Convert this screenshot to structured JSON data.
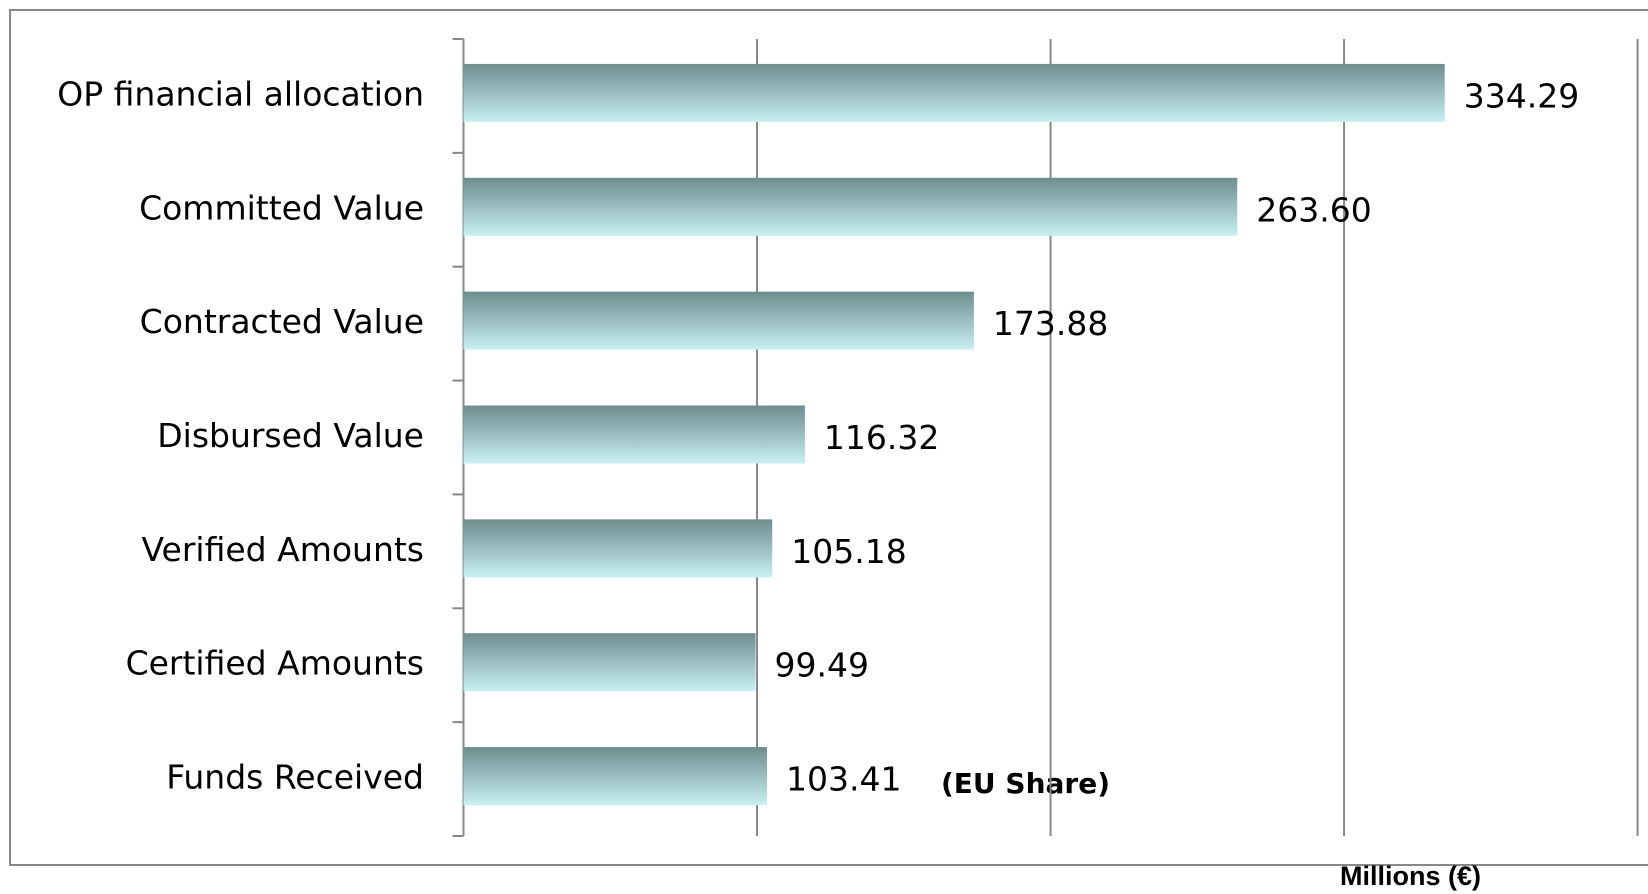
{
  "chart_data": {
    "type": "hbar",
    "categories": [
      "OP financial allocation",
      "Committed Value",
      "Contracted Value",
      "Disbursed Value",
      "Verified Amounts",
      "Certified  Amounts",
      "Funds Received"
    ],
    "values": [
      334.29,
      263.6,
      173.88,
      116.32,
      105.18,
      99.49,
      103.41
    ],
    "value_labels": [
      "334.29",
      "263.60",
      "173.88",
      "116.32",
      "105.18",
      "99.49",
      "103.41"
    ],
    "annotations": [
      "(EU Share)",
      "Millions (€)"
    ],
    "xlim": [
      0,
      400
    ],
    "xticks": [
      0,
      100,
      200,
      300,
      400
    ],
    "grid": true,
    "color": [
      "#6e8d8f",
      "#c8f0f2"
    ]
  }
}
